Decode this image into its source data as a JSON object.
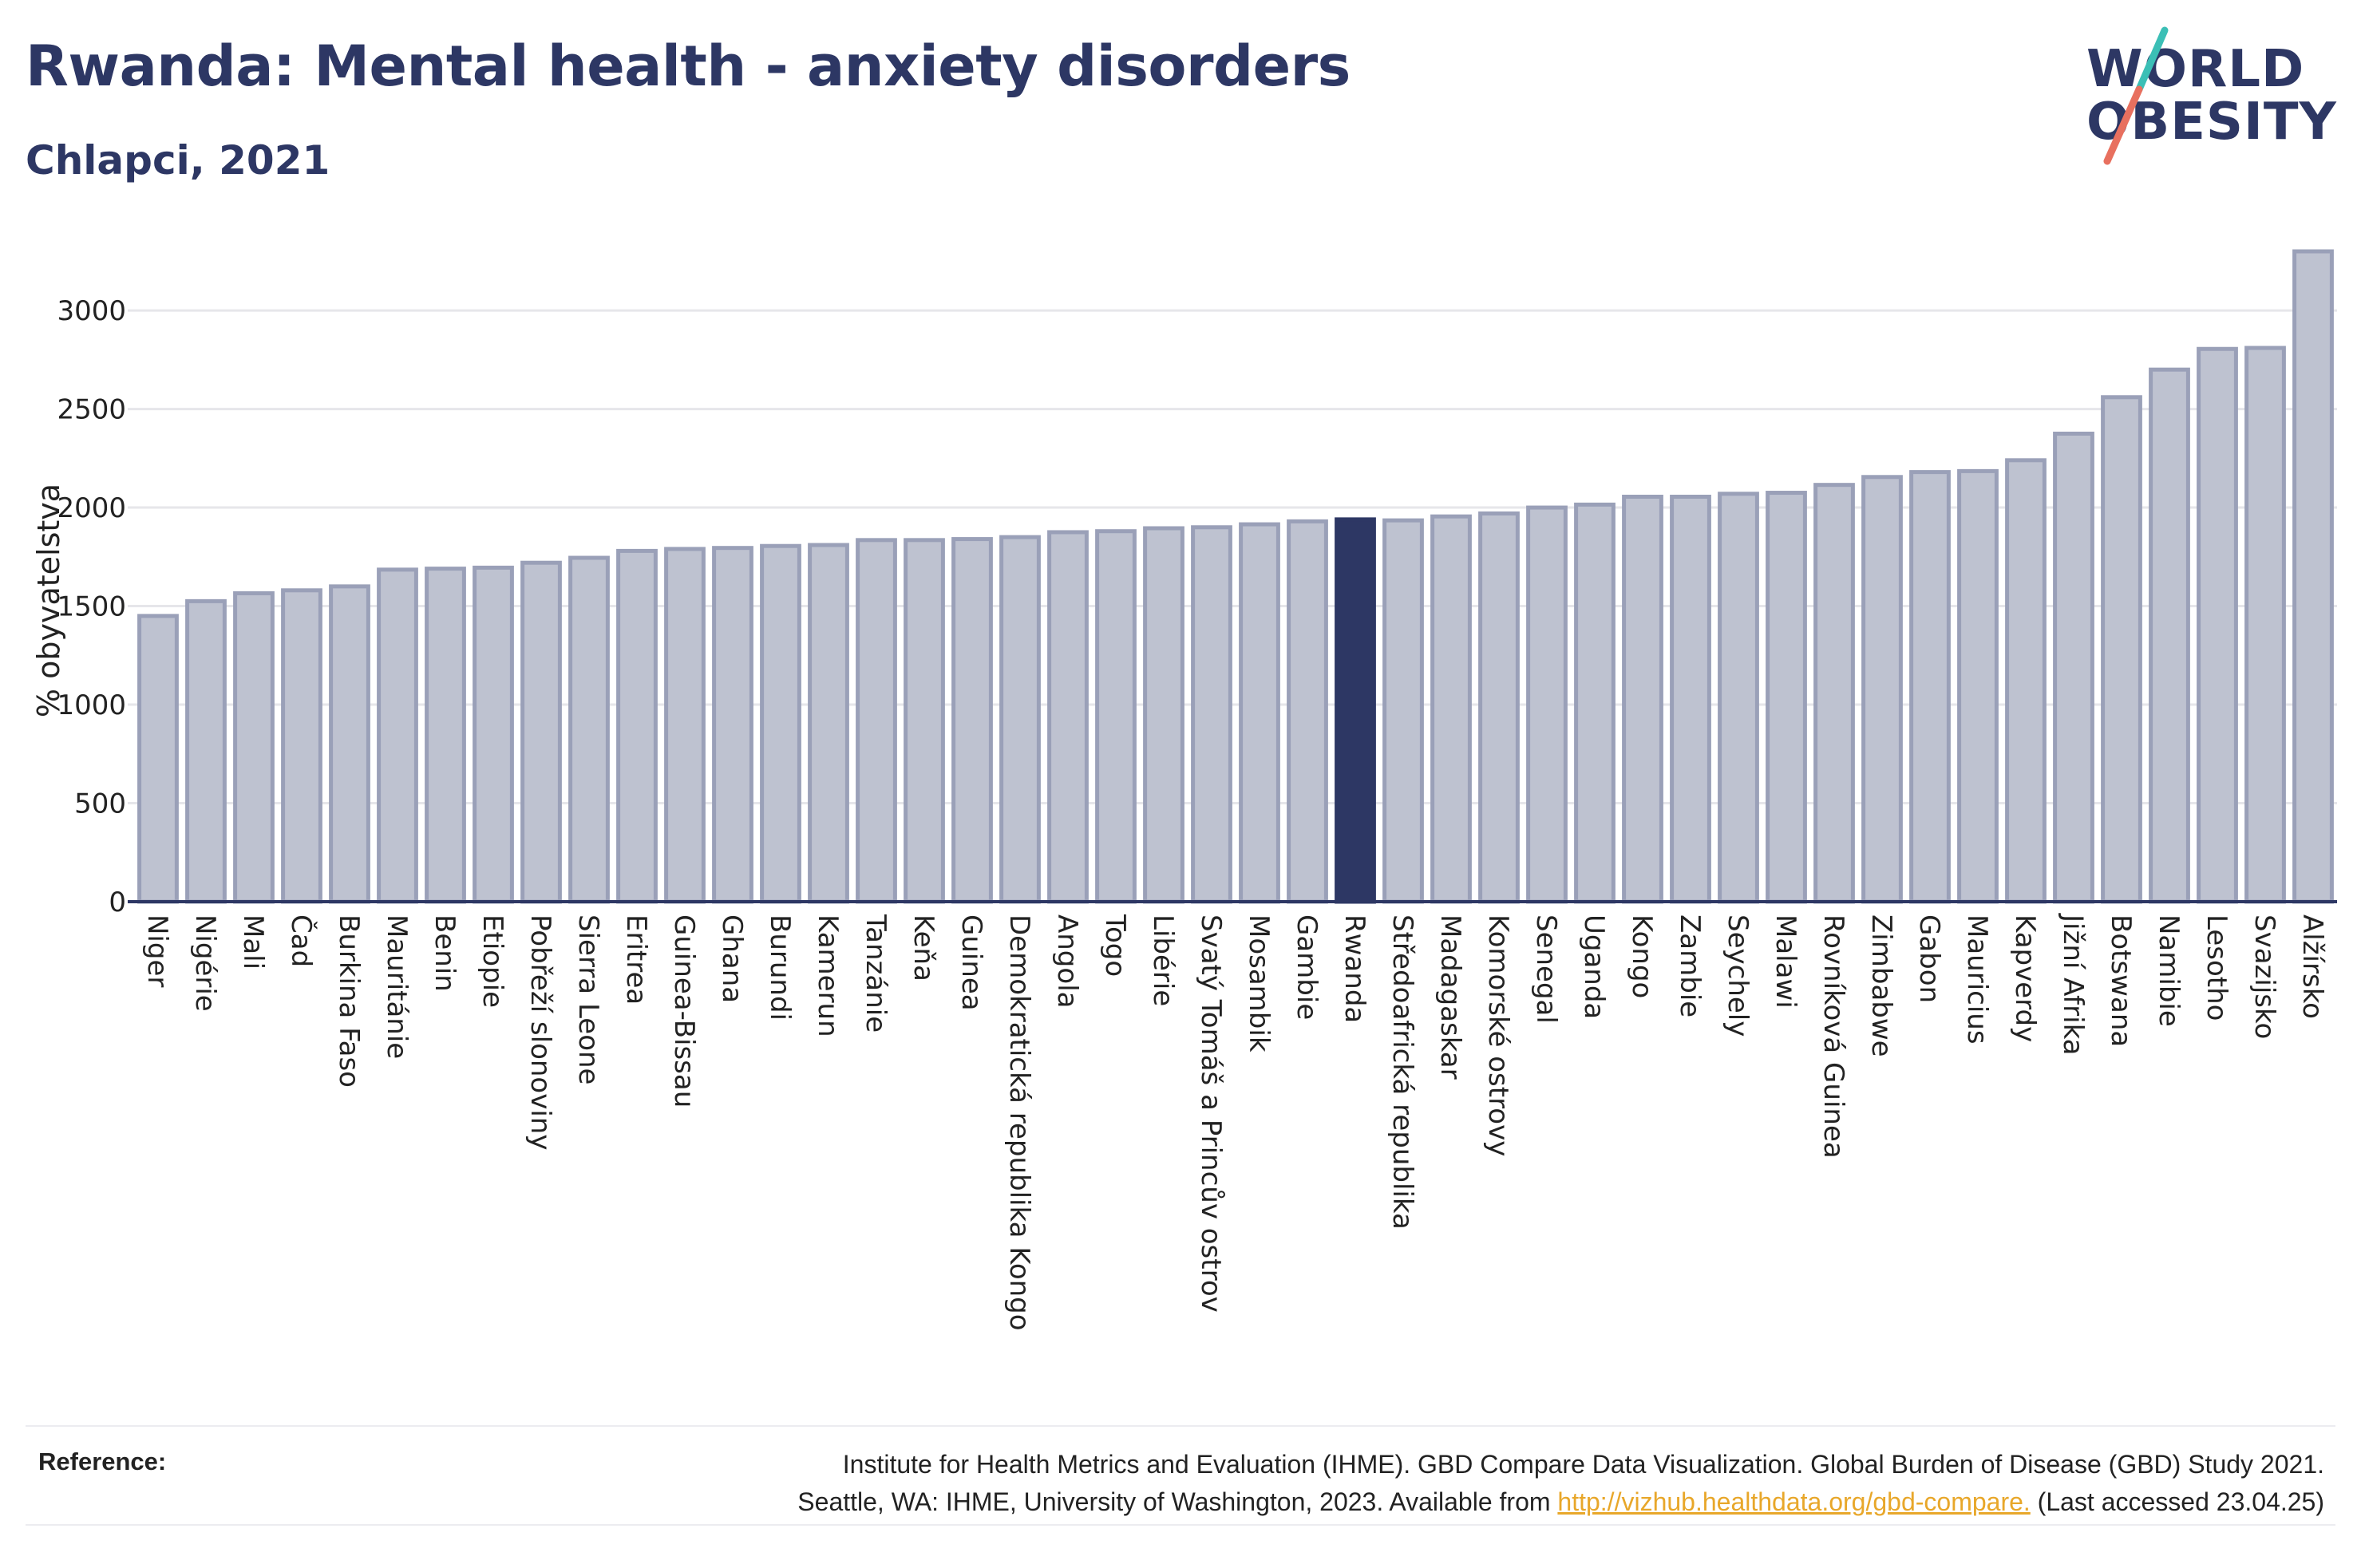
{
  "header": {
    "title": "Rwanda: Mental health - anxiety disorders",
    "subtitle": "Chlapci, 2021"
  },
  "logo": {
    "line1": "WORLD",
    "line2": "OBESITY"
  },
  "colors": {
    "bar": "#bec2d0",
    "bar_stroke": "#9aa0b8",
    "highlight": "#2d3764",
    "grid": "#e6e6ea",
    "axis": "#2d3764",
    "logo_teal": "#3bbfb6",
    "logo_coral": "#e8705f"
  },
  "chart_data": {
    "type": "bar",
    "ylabel": "% obyvatelstva",
    "ylim": [
      0,
      3300
    ],
    "yticks": [
      0,
      500,
      1000,
      1500,
      2000,
      2500,
      3000
    ],
    "grid": true,
    "highlight": "Rwanda",
    "categories": [
      "Niger",
      "Nigérie",
      "Mali",
      "Čad",
      "Burkina Faso",
      "Mauritánie",
      "Benin",
      "Etiopie",
      "Pobřeží slonoviny",
      "Sierra Leone",
      "Eritrea",
      "Guinea-Bissau",
      "Ghana",
      "Burundi",
      "Kamerun",
      "Tanzánie",
      "Keňa",
      "Guinea",
      "Demokratická republika Kongo",
      "Angola",
      "Togo",
      "Libérie",
      "Svatý Tomáš a Princův ostrov",
      "Mosambik",
      "Gambie",
      "Rwanda",
      "Středoafrická republika",
      "Madagaskar",
      "Komorské ostrovy",
      "Senegal",
      "Uganda",
      "Kongo",
      "Zambie",
      "Seychely",
      "Malawi",
      "Rovníková Guinea",
      "Zimbabwe",
      "Gabon",
      "Mauricius",
      "Kapverdy",
      "Jižní Afrika",
      "Botswana",
      "Namibie",
      "Lesotho",
      "Svazijsko",
      "Alžírsko"
    ],
    "values": [
      1450,
      1525,
      1565,
      1580,
      1600,
      1685,
      1690,
      1695,
      1720,
      1745,
      1780,
      1790,
      1795,
      1805,
      1810,
      1835,
      1835,
      1840,
      1850,
      1875,
      1880,
      1895,
      1900,
      1915,
      1930,
      1940,
      1935,
      1955,
      1970,
      2000,
      2015,
      2055,
      2055,
      2070,
      2075,
      2115,
      2155,
      2180,
      2185,
      2240,
      2375,
      2560,
      2700,
      2805,
      2810,
      3300
    ]
  },
  "reference": {
    "label": "Reference:",
    "line1": "Institute for Health Metrics and Evaluation (IHME). GBD Compare Data Visualization. Global Burden of Disease (GBD) Study 2021.",
    "line2_prefix": "Seattle, WA: IHME, University of Washington, 2023. Available from ",
    "link": "http://vizhub.healthdata.org/gbd-compare.",
    "line2_suffix": " (Last accessed 23.04.25)"
  }
}
